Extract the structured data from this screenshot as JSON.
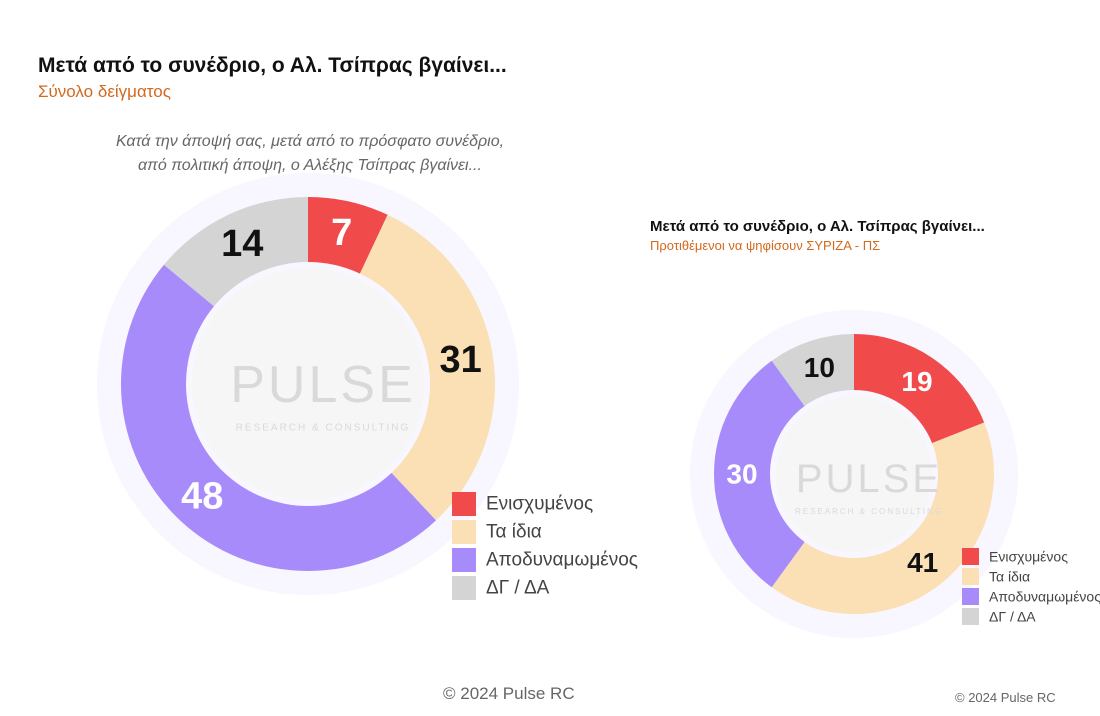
{
  "chart_data": [
    {
      "type": "pie",
      "title": "Μετά από το συνέδριο, ο Αλ. Τσίπρας βγαίνει...",
      "subtitle": "Σύνολο δείγματος",
      "question": [
        "Κατά την άποψή σας, μετά από το πρόσφατο συνέδριο,",
        "από πολιτική άποψη, ο Αλέξης Τσίπρας βγαίνει..."
      ],
      "categories": [
        "Ενισχυμένος",
        "Τα ίδια",
        "Αποδυναμωμένος",
        "ΔΓ / ΔΑ"
      ],
      "values": [
        7,
        31,
        48,
        14
      ],
      "colors": [
        "#f04a4a",
        "#fbe0b6",
        "#a78bfa",
        "#d4d4d4"
      ],
      "label_colors": [
        "#ffffff",
        "#111111",
        "#ffffff",
        "#111111"
      ],
      "legend": "bottom-right",
      "footer": "© 2024 Pulse RC"
    },
    {
      "type": "pie",
      "title": "Μετά από το συνέδριο, ο Αλ. Τσίπρας βγαίνει...",
      "subtitle": "Προτιθέμενοι να ψηφίσουν ΣΥΡΙΖΑ - ΠΣ",
      "categories": [
        "Ενισχυμένος",
        "Τα ίδια",
        "Αποδυναμωμένος",
        "ΔΓ / ΔΑ"
      ],
      "values": [
        19,
        41,
        30,
        10
      ],
      "colors": [
        "#f04a4a",
        "#fbe0b6",
        "#a78bfa",
        "#d4d4d4"
      ],
      "label_colors": [
        "#ffffff",
        "#111111",
        "#ffffff",
        "#111111"
      ],
      "legend": "bottom-right",
      "footer": "© 2024 Pulse RC"
    }
  ],
  "watermark": {
    "brand": "PULSE",
    "tagline": "RESEARCH & CONSULTING"
  }
}
